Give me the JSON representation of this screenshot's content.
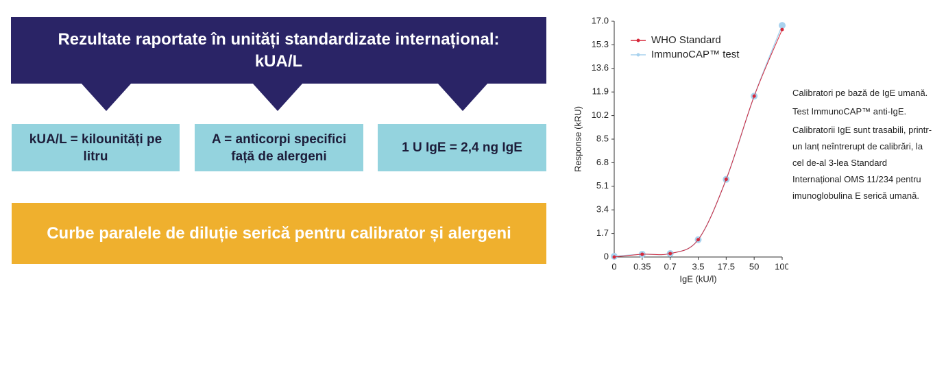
{
  "header": {
    "title": [
      "Rezultate raportate în unități standardizate internațional:",
      "kUA/L"
    ]
  },
  "definitions": [
    {
      "text": "kUA/L = kilounități pe litru"
    },
    {
      "text": "A = anticorpi specifici față de alergeni"
    },
    {
      "text": "1 U IgE = 2,4 ng IgE"
    }
  ],
  "banner": {
    "text": "Curbe paralele de diluție serică pentru calibrator și alergeni"
  },
  "chart_data": {
    "type": "line",
    "x_label": "IgE (kU/l)",
    "y_label": "Response (kRU)",
    "categories": [
      "0",
      "0.35",
      "0.7",
      "3.5",
      "17.5",
      "50",
      "100"
    ],
    "series": [
      {
        "name": "WHO Standard",
        "color": "#d6283a",
        "values": [
          0,
          0.2,
          0.25,
          1.25,
          5.6,
          11.6,
          16.4
        ]
      },
      {
        "name": "ImmunoCAP™ test",
        "color": "#a8d2ee",
        "values": [
          0.05,
          0.2,
          0.25,
          1.25,
          5.6,
          11.6,
          16.7
        ]
      }
    ],
    "ylim": [
      0,
      17
    ],
    "yticks": [
      0,
      1.7,
      3.4,
      5.1,
      6.8,
      8.5,
      10.2,
      11.9,
      13.6,
      15.3,
      {
        "value": 17,
        "label": "17.0"
      }
    ],
    "legend": "top-left"
  },
  "notes": [
    "Calibratori pe bază de IgE umană.",
    "Test ImmunoCAP™ anti-IgE.",
    "Calibratorii IgE sunt trasabili, printr-un lanț neîntrerupt de calibrări, la cel de-al 3-lea Standard Internațional OMS 11/234 pentru imunoglobulina E serică umană."
  ]
}
